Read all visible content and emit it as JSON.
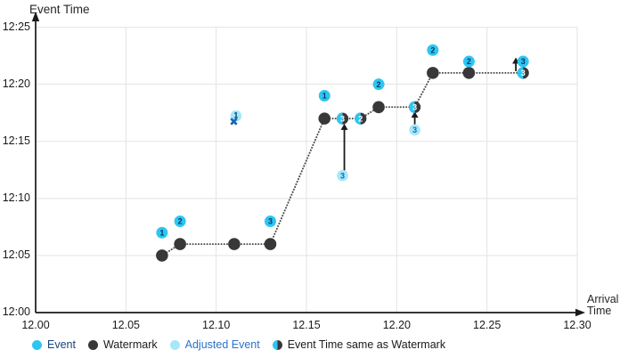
{
  "colors": {
    "event": "#2dc6f1",
    "watermark": "#3a373a",
    "adjusted_event": "#a5e8fa",
    "event_number": "#0a3766",
    "adjusted_number": "#1566b8",
    "half_number": "#ffffff",
    "dropped_x": "#1566b8",
    "gridline": "#e3e3e3",
    "axis": "#1a1a1a",
    "watermark_line": "#4d4d4d",
    "legend_event_text": "#17457c",
    "legend_adjusted_text": "#2b74c9",
    "legend_default_text": "#1a1a1a"
  },
  "legend": {
    "items": [
      {
        "label": "Event",
        "type": "event",
        "text_color": "#17457c"
      },
      {
        "label": "Watermark",
        "type": "watermark",
        "text_color": "#1a1a1a"
      },
      {
        "label": "Adjusted Event",
        "type": "adjusted",
        "text_color": "#2b74c9"
      },
      {
        "label": "Event Time same as Watermark",
        "type": "same-as-watermark",
        "text_color": "#1a1a1a"
      }
    ]
  },
  "chart_data": {
    "type": "scatter",
    "title": "",
    "y_axis": {
      "label": "Event Time",
      "ticks": [
        "12:00",
        "12:05",
        "12:10",
        "12:15",
        "12:20",
        "12:25"
      ],
      "range_minutes_after_1200": [
        0,
        25
      ],
      "grid": true
    },
    "x_axis": {
      "label": "Arrival Time",
      "label_lines": [
        "Arrival",
        "Time"
      ],
      "ticks": [
        "12.00",
        "12.05",
        "12.10",
        "12.15",
        "12.20",
        "12.25",
        "12.30"
      ],
      "range": [
        12.0,
        12.3
      ],
      "grid": true
    },
    "series": {
      "events": {
        "name": "Event",
        "points": [
          {
            "n": "1",
            "arrival": 12.07,
            "event_time": "12:07"
          },
          {
            "n": "2",
            "arrival": 12.08,
            "event_time": "12:08"
          },
          {
            "n": "3",
            "arrival": 12.13,
            "event_time": "12:08"
          },
          {
            "n": "1",
            "arrival": 12.16,
            "event_time": "12:19"
          },
          {
            "n": "2",
            "arrival": 12.19,
            "event_time": "12:20"
          },
          {
            "n": "2",
            "arrival": 12.22,
            "event_time": "12:23"
          },
          {
            "n": "2",
            "arrival": 12.24,
            "event_time": "12:22"
          },
          {
            "n": "3",
            "arrival": 12.27,
            "event_time": "12:22"
          }
        ]
      },
      "watermarks": {
        "name": "Watermark",
        "points": [
          {
            "arrival": 12.07,
            "time": "12:05"
          },
          {
            "arrival": 12.08,
            "time": "12:06"
          },
          {
            "arrival": 12.11,
            "time": "12:06"
          },
          {
            "arrival": 12.13,
            "time": "12:06"
          },
          {
            "arrival": 12.16,
            "time": "12:17"
          },
          {
            "arrival": 12.19,
            "time": "12:18"
          },
          {
            "arrival": 12.22,
            "time": "12:21"
          },
          {
            "arrival": 12.24,
            "time": "12:21"
          }
        ]
      },
      "same_as_watermark": {
        "name": "Event Time same as Watermark",
        "points": [
          {
            "n": "3",
            "arrival": 12.17,
            "time": "12:17"
          },
          {
            "n": "2",
            "arrival": 12.18,
            "time": "12:17"
          },
          {
            "n": "3",
            "arrival": 12.21,
            "time": "12:18"
          },
          {
            "n": "3",
            "arrival": 12.27,
            "time": "12:21"
          }
        ]
      },
      "adjusted_events": {
        "name": "Adjusted Event",
        "points": [
          {
            "n": "3",
            "arrival": 12.17,
            "original_time": "12:12",
            "adjusted_to": "12:17"
          },
          {
            "n": "3",
            "arrival": 12.21,
            "original_time": "12:16",
            "adjusted_to": "12:18"
          }
        ]
      },
      "dropped_event": {
        "name": "Dropped Event",
        "points": [
          {
            "n": "1",
            "arrival": 12.11,
            "event_time": "12:17",
            "mark": "✖"
          }
        ]
      }
    },
    "watermark_line": [
      {
        "x": 12.07,
        "time": "12:05"
      },
      {
        "x": 12.08,
        "time": "12:06"
      },
      {
        "x": 12.11,
        "time": "12:06"
      },
      {
        "x": 12.13,
        "time": "12:06"
      },
      {
        "x": 12.16,
        "time": "12:17"
      },
      {
        "x": 12.17,
        "time": "12:17"
      },
      {
        "x": 12.18,
        "time": "12:17"
      },
      {
        "x": 12.19,
        "time": "12:18"
      },
      {
        "x": 12.21,
        "time": "12:18"
      },
      {
        "x": 12.22,
        "time": "12:21"
      },
      {
        "x": 12.24,
        "time": "12:21"
      },
      {
        "x": 12.27,
        "time": "12:21"
      }
    ],
    "arrows": [
      {
        "x": 12.171,
        "from_minutes": 12.45,
        "to_minutes": 16.55
      },
      {
        "x": 12.21,
        "from_minutes": 16.5,
        "to_minutes": 17.62
      },
      {
        "x": 12.266,
        "from_minutes": 21.15,
        "to_minutes": 22.35
      }
    ]
  }
}
